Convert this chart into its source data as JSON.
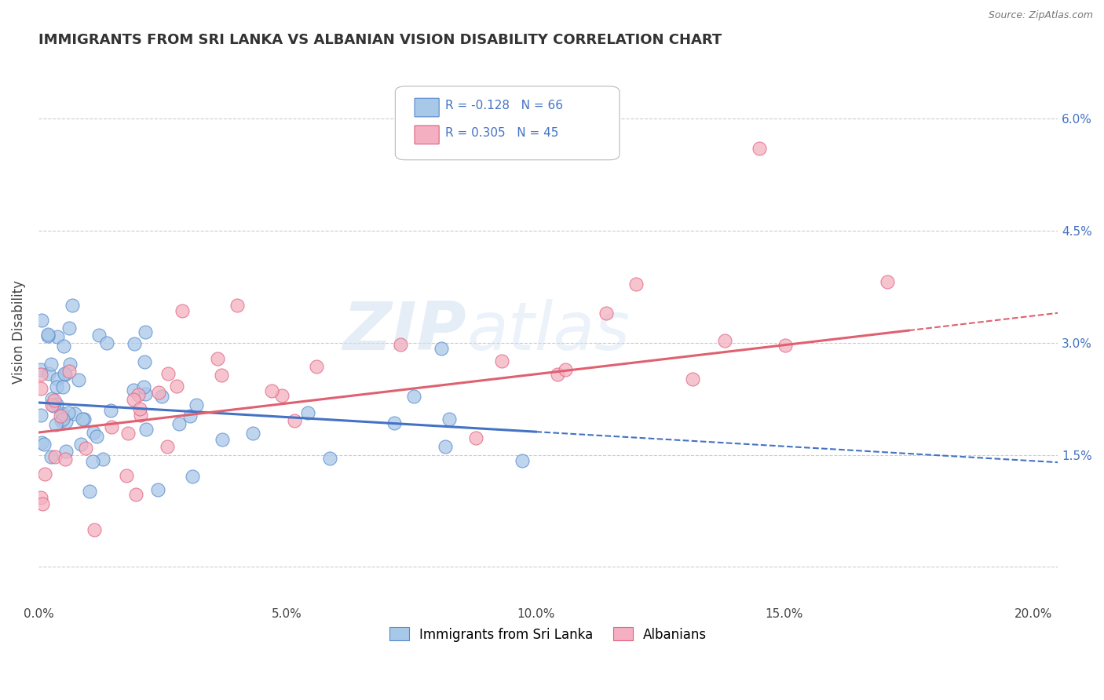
{
  "title": "IMMIGRANTS FROM SRI LANKA VS ALBANIAN VISION DISABILITY CORRELATION CHART",
  "source": "Source: ZipAtlas.com",
  "ylabel": "Vision Disability",
  "xlim": [
    0.0,
    0.205
  ],
  "ylim": [
    -0.005,
    0.068
  ],
  "yticks": [
    0.0,
    0.015,
    0.03,
    0.045,
    0.06
  ],
  "ytick_labels_right": [
    "",
    "1.5%",
    "3.0%",
    "4.5%",
    "6.0%"
  ],
  "xticks": [
    0.0,
    0.05,
    0.1,
    0.15,
    0.2
  ],
  "xtick_labels": [
    "0.0%",
    "5.0%",
    "10.0%",
    "15.0%",
    "20.0%"
  ],
  "blue_color": "#a8c8e8",
  "pink_color": "#f4b0c0",
  "blue_edge_color": "#5588cc",
  "pink_edge_color": "#e06080",
  "blue_line_color": "#4472c4",
  "pink_line_color": "#e06070",
  "watermark_zip": "ZIP",
  "watermark_atlas": "atlas",
  "blue_line_start_x": 0.0,
  "blue_line_start_y": 0.022,
  "blue_line_solid_end_x": 0.1,
  "blue_line_end_x": 0.205,
  "blue_line_end_y": 0.014,
  "pink_line_start_x": 0.0,
  "pink_line_start_y": 0.018,
  "pink_line_solid_end_x": 0.175,
  "pink_line_end_x": 0.205,
  "pink_line_end_y": 0.034
}
